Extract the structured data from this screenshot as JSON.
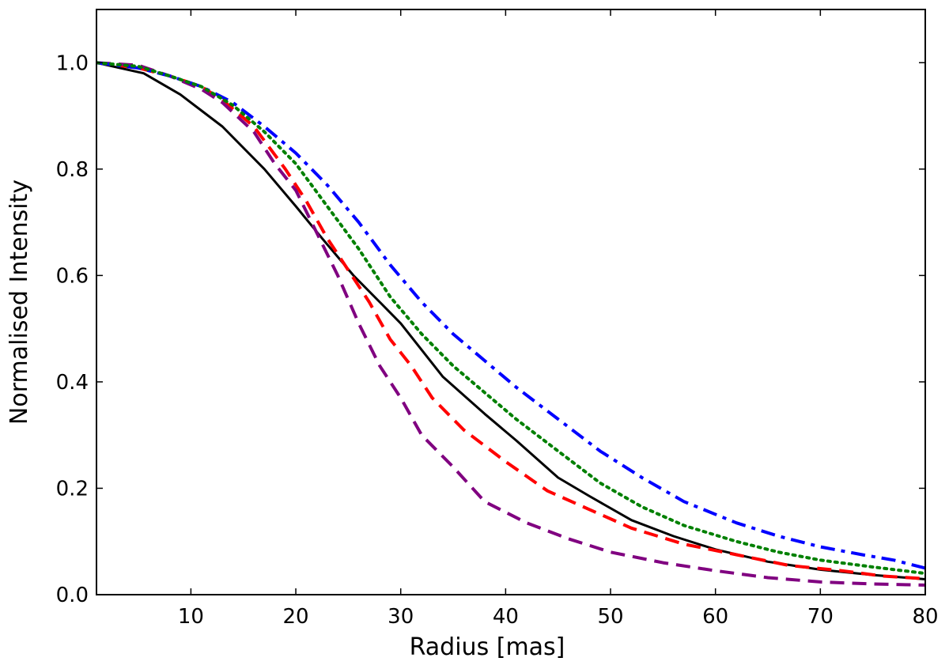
{
  "chart_data": {
    "type": "line",
    "title": "",
    "xlabel": "Radius [mas]",
    "ylabel": "Normalised Intensity",
    "xlim": [
      1,
      80
    ],
    "ylim": [
      0.0,
      1.1
    ],
    "x_ticks": [
      10,
      20,
      30,
      40,
      50,
      60,
      70,
      80
    ],
    "x_tick_labels": [
      "10",
      "20",
      "30",
      "40",
      "50",
      "60",
      "70",
      "80"
    ],
    "y_ticks": [
      0.0,
      0.2,
      0.4,
      0.6,
      0.8,
      1.0
    ],
    "y_tick_labels": [
      "0.0",
      "0.2",
      "0.4",
      "0.6",
      "0.8",
      "1.0"
    ],
    "grid": false,
    "legend": "none",
    "series": [
      {
        "color": "#000000",
        "line_style": "solid",
        "points": [
          [
            1,
            1.0
          ],
          [
            5.5,
            0.98
          ],
          [
            9,
            0.94
          ],
          [
            13,
            0.88
          ],
          [
            17,
            0.8
          ],
          [
            20,
            0.73
          ],
          [
            22.5,
            0.67
          ],
          [
            25.5,
            0.6
          ],
          [
            28,
            0.55
          ],
          [
            30,
            0.51
          ],
          [
            34,
            0.41
          ],
          [
            38,
            0.34
          ],
          [
            41,
            0.29
          ],
          [
            45,
            0.22
          ],
          [
            48,
            0.185
          ],
          [
            52,
            0.14
          ],
          [
            56,
            0.11
          ],
          [
            60,
            0.085
          ],
          [
            65,
            0.062
          ],
          [
            70,
            0.047
          ],
          [
            75,
            0.037
          ],
          [
            80,
            0.029
          ]
        ]
      },
      {
        "color": "#ff0000",
        "line_style": "dashed",
        "points": [
          [
            1,
            1.0
          ],
          [
            5,
            0.99
          ],
          [
            8,
            0.975
          ],
          [
            11,
            0.955
          ],
          [
            13,
            0.93
          ],
          [
            16,
            0.88
          ],
          [
            19,
            0.8
          ],
          [
            21,
            0.74
          ],
          [
            23,
            0.67
          ],
          [
            25,
            0.61
          ],
          [
            27,
            0.55
          ],
          [
            29,
            0.48
          ],
          [
            31,
            0.43
          ],
          [
            33,
            0.37
          ],
          [
            36,
            0.31
          ],
          [
            40,
            0.25
          ],
          [
            44,
            0.195
          ],
          [
            48,
            0.16
          ],
          [
            52,
            0.125
          ],
          [
            57,
            0.095
          ],
          [
            62,
            0.075
          ],
          [
            67,
            0.055
          ],
          [
            72,
            0.045
          ],
          [
            76,
            0.035
          ],
          [
            80,
            0.03
          ]
        ]
      },
      {
        "color": "#800080",
        "line_style": "dashed",
        "points": [
          [
            1,
            1.0
          ],
          [
            5,
            0.995
          ],
          [
            8,
            0.975
          ],
          [
            11,
            0.95
          ],
          [
            13,
            0.925
          ],
          [
            16,
            0.87
          ],
          [
            18,
            0.81
          ],
          [
            20,
            0.76
          ],
          [
            22,
            0.68
          ],
          [
            24,
            0.6
          ],
          [
            26,
            0.51
          ],
          [
            28,
            0.43
          ],
          [
            30,
            0.37
          ],
          [
            32,
            0.3
          ],
          [
            35,
            0.24
          ],
          [
            38,
            0.175
          ],
          [
            42,
            0.135
          ],
          [
            46,
            0.105
          ],
          [
            50,
            0.08
          ],
          [
            55,
            0.06
          ],
          [
            60,
            0.045
          ],
          [
            65,
            0.032
          ],
          [
            70,
            0.024
          ],
          [
            75,
            0.02
          ],
          [
            80,
            0.018
          ]
        ]
      },
      {
        "color": "#0000ff",
        "line_style": "dashdot",
        "points": [
          [
            1,
            1.0
          ],
          [
            5,
            0.99
          ],
          [
            8,
            0.975
          ],
          [
            11,
            0.955
          ],
          [
            14,
            0.925
          ],
          [
            17,
            0.88
          ],
          [
            20,
            0.83
          ],
          [
            23,
            0.77
          ],
          [
            26,
            0.7
          ],
          [
            29,
            0.62
          ],
          [
            32,
            0.55
          ],
          [
            35,
            0.49
          ],
          [
            38,
            0.44
          ],
          [
            41,
            0.39
          ],
          [
            45,
            0.33
          ],
          [
            49,
            0.27
          ],
          [
            53,
            0.22
          ],
          [
            57,
            0.175
          ],
          [
            62,
            0.135
          ],
          [
            66,
            0.11
          ],
          [
            70,
            0.09
          ],
          [
            74,
            0.075
          ],
          [
            77,
            0.065
          ],
          [
            80,
            0.05
          ]
        ]
      },
      {
        "color": "#008000",
        "line_style": "dotted",
        "points": [
          [
            1,
            1.0
          ],
          [
            5,
            0.993
          ],
          [
            8,
            0.975
          ],
          [
            11,
            0.955
          ],
          [
            14,
            0.92
          ],
          [
            17,
            0.87
          ],
          [
            20,
            0.81
          ],
          [
            23,
            0.73
          ],
          [
            26,
            0.65
          ],
          [
            29,
            0.56
          ],
          [
            32,
            0.49
          ],
          [
            35,
            0.43
          ],
          [
            38,
            0.38
          ],
          [
            41,
            0.33
          ],
          [
            45,
            0.27
          ],
          [
            49,
            0.21
          ],
          [
            53,
            0.165
          ],
          [
            57,
            0.13
          ],
          [
            62,
            0.1
          ],
          [
            66,
            0.08
          ],
          [
            70,
            0.065
          ],
          [
            75,
            0.052
          ],
          [
            80,
            0.04
          ]
        ]
      }
    ]
  }
}
